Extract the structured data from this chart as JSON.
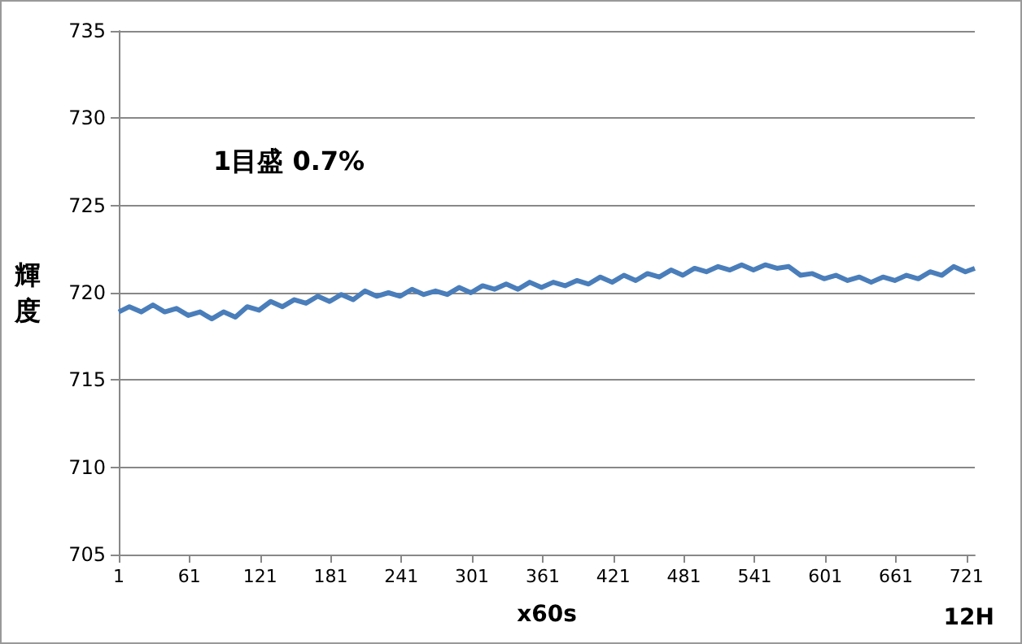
{
  "chart_data": {
    "type": "line",
    "xlabel": "x60s",
    "ylabel": "輝度",
    "annotations": [
      "1目盛 0.7%",
      "12H"
    ],
    "x": [
      1,
      10,
      20,
      30,
      40,
      50,
      60,
      70,
      80,
      90,
      100,
      110,
      120,
      130,
      140,
      150,
      160,
      170,
      180,
      190,
      200,
      210,
      220,
      230,
      240,
      250,
      260,
      270,
      280,
      290,
      300,
      310,
      320,
      330,
      340,
      350,
      360,
      370,
      380,
      390,
      400,
      410,
      420,
      430,
      440,
      450,
      460,
      470,
      480,
      490,
      500,
      510,
      520,
      530,
      540,
      550,
      560,
      570,
      580,
      590,
      600,
      610,
      620,
      630,
      640,
      650,
      660,
      670,
      680,
      690,
      700,
      710,
      720,
      728
    ],
    "series": [
      {
        "color": "#4a7ebb",
        "values": [
          718.9,
          719.2,
          718.9,
          719.3,
          718.9,
          719.1,
          718.7,
          718.9,
          718.5,
          718.9,
          718.6,
          719.2,
          719.0,
          719.5,
          719.2,
          719.6,
          719.4,
          719.8,
          719.5,
          719.9,
          719.6,
          720.1,
          719.8,
          720.0,
          719.8,
          720.2,
          719.9,
          720.1,
          719.9,
          720.3,
          720.0,
          720.4,
          720.2,
          720.5,
          720.2,
          720.6,
          720.3,
          720.6,
          720.4,
          720.7,
          720.5,
          720.9,
          720.6,
          721.0,
          720.7,
          721.1,
          720.9,
          721.3,
          721.0,
          721.4,
          721.2,
          721.5,
          721.3,
          721.6,
          721.3,
          721.6,
          721.4,
          721.5,
          721.0,
          721.1,
          720.8,
          721.0,
          720.7,
          720.9,
          720.6,
          720.9,
          720.7,
          721.0,
          720.8,
          721.2,
          721.0,
          721.5,
          721.2,
          721.4
        ]
      }
    ],
    "xlim": [
      1,
      728
    ],
    "xticks": [
      1,
      61,
      121,
      181,
      241,
      301,
      361,
      421,
      481,
      541,
      601,
      661,
      721
    ],
    "ylim": [
      705,
      735
    ],
    "yticks": [
      705,
      710,
      715,
      720,
      725,
      730,
      735
    ],
    "grid": "y"
  }
}
